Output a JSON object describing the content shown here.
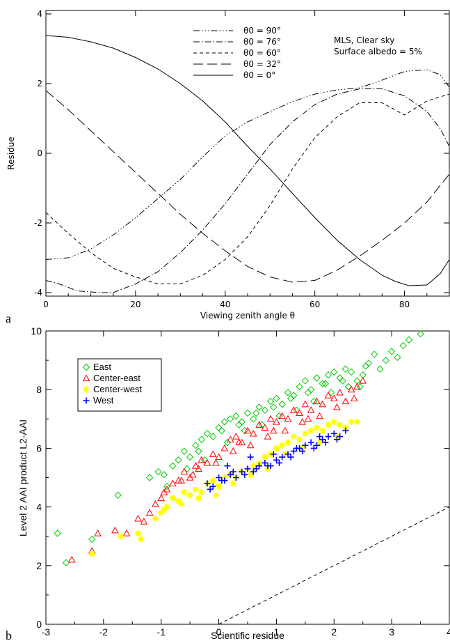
{
  "chart_data": [
    {
      "type": "line",
      "panel_label": "a",
      "xlabel": "Viewing zenith angle θ",
      "ylabel": "Residue",
      "xlim": [
        0,
        90
      ],
      "ylim": [
        -4.1,
        4.1
      ],
      "xticks": [
        "0",
        "20",
        "40",
        "60",
        "80"
      ],
      "yticks": [
        "-4",
        "-2",
        "0",
        "2",
        "4"
      ],
      "annotation": [
        "MLS, Clear sky",
        "Surface albedo = 5%"
      ],
      "legend_position": "top-center",
      "series": [
        {
          "name": "θ0 = 90°",
          "dash": "dash-dot-dot-dot",
          "x": [
            0,
            5,
            10,
            15,
            20,
            25,
            30,
            35,
            40,
            45,
            50,
            55,
            60,
            65,
            70,
            75,
            80,
            85,
            88,
            90
          ],
          "y": [
            -3.05,
            -3.0,
            -2.75,
            -2.35,
            -1.85,
            -1.3,
            -0.75,
            -0.1,
            0.5,
            0.9,
            1.2,
            1.48,
            1.7,
            1.82,
            1.88,
            2.1,
            2.35,
            2.4,
            2.25,
            1.9
          ]
        },
        {
          "name": "θ0 = 76°",
          "dash": "dash-dot",
          "x": [
            0,
            3,
            7,
            12,
            15,
            20,
            25,
            30,
            35,
            40,
            45,
            50,
            55,
            60,
            65,
            70,
            75,
            80,
            85,
            88,
            90
          ],
          "y": [
            -3.65,
            -3.75,
            -3.95,
            -4.0,
            -4.0,
            -3.75,
            -3.4,
            -2.85,
            -2.2,
            -1.45,
            -0.6,
            0.25,
            0.9,
            1.4,
            1.7,
            1.85,
            1.85,
            1.65,
            1.2,
            0.7,
            0.2
          ]
        },
        {
          "name": "θ0 = 60°",
          "dash": "dash",
          "x": [
            0,
            5,
            10,
            15,
            20,
            25,
            30,
            35,
            40,
            45,
            50,
            55,
            60,
            65,
            70,
            75,
            80,
            85,
            90
          ],
          "y": [
            -1.7,
            -2.3,
            -2.85,
            -3.3,
            -3.55,
            -3.75,
            -3.75,
            -3.5,
            -3.05,
            -2.4,
            -1.5,
            -0.45,
            0.45,
            1.05,
            1.45,
            1.45,
            1.1,
            1.5,
            1.7
          ]
        },
        {
          "name": "θ0 = 32°",
          "dash": "long-dash",
          "x": [
            0,
            5,
            10,
            15,
            20,
            25,
            30,
            35,
            40,
            45,
            50,
            55,
            60,
            65,
            70,
            75,
            80,
            85,
            90
          ],
          "y": [
            1.8,
            1.25,
            0.65,
            0.05,
            -0.55,
            -1.15,
            -1.75,
            -2.3,
            -2.8,
            -3.25,
            -3.55,
            -3.7,
            -3.65,
            -3.35,
            -2.95,
            -2.5,
            -2.0,
            -1.4,
            -0.6
          ]
        },
        {
          "name": "θ0 = 0°",
          "dash": "solid",
          "x": [
            0,
            5,
            10,
            15,
            20,
            25,
            30,
            35,
            40,
            45,
            50,
            55,
            60,
            65,
            70,
            75,
            78,
            81,
            85,
            88,
            90
          ],
          "y": [
            3.38,
            3.33,
            3.2,
            3.02,
            2.75,
            2.42,
            2.0,
            1.5,
            0.9,
            0.2,
            -0.45,
            -1.15,
            -1.85,
            -2.5,
            -3.05,
            -3.5,
            -3.68,
            -3.8,
            -3.78,
            -3.45,
            -3.05
          ]
        }
      ]
    },
    {
      "type": "scatter",
      "panel_label": "b",
      "xlabel": "Scientific residue",
      "ylabel": "Level 2 AAI product L2-AAI",
      "xlim": [
        -3,
        4
      ],
      "ylim": [
        0,
        10
      ],
      "xticks": [
        "-3",
        "-2",
        "-1",
        "0",
        "1",
        "2",
        "3",
        "4"
      ],
      "yticks": [
        "0",
        "2",
        "4",
        "6",
        "8",
        "10"
      ],
      "reference_line": {
        "style": "dashed",
        "x": [
          0,
          4
        ],
        "y": [
          0,
          4
        ]
      },
      "legend_position": "top-left",
      "series": [
        {
          "name": "East",
          "marker": "diamond",
          "color": "#00cc00",
          "x": [
            -2.8,
            -2.65,
            -2.2,
            -1.75,
            -1.2,
            -1.05,
            -0.95,
            -0.8,
            -0.7,
            -0.6,
            -0.5,
            -0.4,
            -0.3,
            -0.2,
            -0.1,
            0.0,
            0.1,
            0.2,
            0.3,
            0.4,
            0.5,
            0.6,
            0.7,
            0.8,
            0.9,
            1.0,
            1.1,
            1.2,
            1.3,
            1.4,
            1.5,
            1.6,
            1.7,
            1.8,
            1.9,
            2.0,
            2.1,
            2.2,
            2.3,
            2.4,
            2.5,
            2.6,
            2.7,
            2.8,
            2.9,
            3.0,
            3.1,
            3.2,
            3.3,
            3.5,
            -0.9,
            -0.55,
            -0.25,
            0.15,
            0.45,
            0.75,
            1.05,
            1.35,
            1.65,
            1.95,
            2.25,
            2.55,
            -0.35,
            0.05,
            0.35,
            0.65,
            0.95,
            1.25,
            1.55,
            1.85,
            2.15,
            2.45
          ],
          "y": [
            3.1,
            2.1,
            2.9,
            4.4,
            5.0,
            5.2,
            5.1,
            5.4,
            5.6,
            5.9,
            5.7,
            6.1,
            6.3,
            6.5,
            6.4,
            6.7,
            6.9,
            7.0,
            7.1,
            6.9,
            7.2,
            7.0,
            7.4,
            7.3,
            7.6,
            7.7,
            7.5,
            7.9,
            7.8,
            8.1,
            8.3,
            8.0,
            8.4,
            8.2,
            8.5,
            8.6,
            8.4,
            8.7,
            8.6,
            8.3,
            8.5,
            8.9,
            9.2,
            8.7,
            9.0,
            9.3,
            9.1,
            9.5,
            9.7,
            9.9,
            4.7,
            5.3,
            5.6,
            6.2,
            6.6,
            6.8,
            7.1,
            7.3,
            7.6,
            7.9,
            8.1,
            8.8,
            5.9,
            6.6,
            6.8,
            7.2,
            7.4,
            7.7,
            7.9,
            8.2,
            8.3,
            8.1
          ]
        },
        {
          "name": "Center-east",
          "marker": "triangle",
          "color": "#ff0000",
          "x": [
            -2.55,
            -2.2,
            -2.1,
            -1.8,
            -1.6,
            -1.4,
            -1.3,
            -1.2,
            -1.1,
            -1.0,
            -0.9,
            -0.8,
            -0.7,
            -0.6,
            -0.5,
            -0.4,
            -0.3,
            -0.2,
            -0.1,
            0.0,
            0.1,
            0.2,
            0.3,
            0.4,
            0.5,
            0.6,
            0.7,
            0.8,
            0.9,
            1.0,
            1.1,
            1.2,
            1.3,
            1.4,
            1.5,
            1.6,
            1.7,
            1.8,
            1.9,
            2.0,
            2.1,
            2.2,
            2.3,
            2.4,
            2.5,
            -0.95,
            -0.65,
            -0.35,
            -0.05,
            0.25,
            0.55,
            0.85,
            1.15,
            1.45,
            1.75,
            2.05,
            2.35,
            -0.45,
            0.35,
            0.95,
            1.55
          ],
          "y": [
            2.2,
            2.5,
            3.1,
            3.2,
            3.1,
            3.6,
            3.5,
            3.8,
            4.1,
            4.3,
            4.6,
            4.8,
            4.9,
            5.2,
            5.0,
            5.4,
            5.6,
            5.5,
            5.8,
            5.7,
            6.0,
            6.3,
            6.4,
            6.2,
            6.6,
            6.5,
            6.8,
            6.7,
            7.0,
            6.9,
            7.1,
            7.0,
            7.3,
            7.2,
            7.5,
            7.3,
            7.6,
            7.5,
            7.8,
            7.7,
            7.9,
            7.6,
            8.0,
            8.1,
            8.3,
            4.5,
            4.9,
            5.3,
            5.5,
            5.9,
            6.1,
            6.4,
            6.6,
            6.9,
            7.1,
            7.4,
            7.7,
            5.1,
            6.2,
            6.6,
            7.0
          ]
        },
        {
          "name": "Center-west",
          "marker": "asterisk",
          "color": "#ffff00",
          "x": [
            -2.2,
            -1.7,
            -1.4,
            -1.35,
            -1.1,
            -1.0,
            -0.9,
            -0.8,
            -0.7,
            -0.6,
            -0.5,
            -0.4,
            -0.3,
            -0.2,
            -0.1,
            0.0,
            0.1,
            0.2,
            0.3,
            0.4,
            0.5,
            0.6,
            0.7,
            0.8,
            0.9,
            1.0,
            1.1,
            1.2,
            1.3,
            1.4,
            1.5,
            1.6,
            1.7,
            1.8,
            1.9,
            2.0,
            2.1,
            2.2,
            2.3,
            2.4,
            -0.95,
            -0.65,
            -0.35,
            -0.05,
            0.25,
            0.55,
            0.85,
            1.15,
            1.45,
            1.75,
            2.05
          ],
          "y": [
            2.4,
            3.0,
            3.1,
            2.9,
            3.6,
            3.8,
            4.0,
            4.3,
            4.2,
            4.5,
            4.4,
            4.6,
            4.5,
            4.8,
            4.9,
            4.7,
            5.0,
            5.1,
            5.0,
            5.2,
            5.3,
            5.4,
            5.5,
            5.7,
            5.8,
            6.0,
            6.1,
            6.2,
            6.4,
            6.3,
            6.5,
            6.6,
            6.7,
            6.6,
            6.8,
            6.9,
            6.8,
            6.7,
            6.9,
            6.9,
            3.9,
            4.1,
            4.3,
            4.4,
            4.8,
            5.1,
            5.3,
            5.8,
            6.0,
            6.2,
            6.4
          ]
        },
        {
          "name": "West",
          "marker": "plus",
          "color": "#0000ff",
          "x": [
            -0.2,
            -0.1,
            0.0,
            0.1,
            0.2,
            0.3,
            0.4,
            0.5,
            0.6,
            0.7,
            0.8,
            0.9,
            1.0,
            1.1,
            1.2,
            1.3,
            1.4,
            1.5,
            1.6,
            1.7,
            1.8,
            1.9,
            2.0,
            2.1,
            2.2,
            -0.15,
            0.05,
            0.25,
            0.45,
            0.65,
            0.85,
            1.05,
            1.25,
            1.45,
            1.65,
            1.85,
            2.05,
            0.15,
            0.55,
            0.95,
            1.35,
            1.75
          ],
          "y": [
            4.8,
            4.7,
            5.0,
            4.9,
            5.1,
            5.0,
            5.2,
            5.3,
            5.2,
            5.4,
            5.5,
            5.4,
            5.6,
            5.7,
            5.8,
            5.9,
            6.0,
            6.1,
            6.2,
            6.1,
            6.3,
            6.4,
            6.5,
            6.4,
            6.6,
            4.6,
            4.9,
            5.2,
            5.1,
            5.3,
            5.4,
            5.5,
            5.7,
            5.9,
            6.0,
            6.2,
            6.3,
            5.4,
            5.7,
            5.8,
            6.0,
            6.4
          ]
        }
      ]
    }
  ]
}
